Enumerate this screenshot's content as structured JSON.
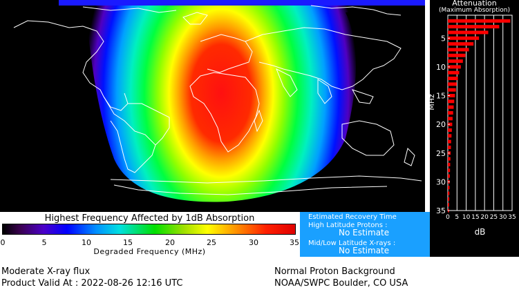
{
  "legend": {
    "title": "Highest Frequency Affected by 1dB Absorption",
    "ticks": [
      "0",
      "5",
      "10",
      "15",
      "20",
      "25",
      "30",
      "35"
    ],
    "xlabel": "Degraded Frequency (MHz)"
  },
  "recovery": {
    "title": "Estimated Recovery Time",
    "high_lat_label": "High Latitude Protons :",
    "high_lat_value": "No Estimate",
    "mid_lat_label": "Mid/Low Latitude X-rays :",
    "mid_lat_value": "No Estimate"
  },
  "attenuation": {
    "title": "Attenuation",
    "subtitle": "(Maximum Absorption)",
    "y_label": "MHz",
    "x_label": "dB",
    "y_ticks": [
      "5",
      "10",
      "15",
      "20",
      "25",
      "30",
      "35"
    ],
    "x_ticks": [
      "0",
      "5",
      "10",
      "15",
      "20",
      "25",
      "30",
      "35"
    ]
  },
  "chart_data": {
    "type": "bar",
    "orientation": "horizontal",
    "title": "Attenuation",
    "subtitle": "(Maximum Absorption)",
    "ylabel": "MHz",
    "xlabel": "dB",
    "xlim": [
      0,
      35
    ],
    "ylim": [
      1,
      35
    ],
    "frequencies": [
      2,
      3,
      4,
      5,
      6,
      7,
      8,
      9,
      10,
      11,
      12,
      13,
      14,
      15,
      16,
      17,
      18,
      19,
      20,
      21,
      22,
      23,
      24,
      25,
      26,
      27,
      28,
      29,
      30,
      31,
      32,
      33,
      34,
      35
    ],
    "values": [
      34,
      28,
      22,
      17,
      14,
      11.5,
      9.6,
      8.2,
      7.1,
      6.2,
      5.5,
      4.9,
      4.4,
      3.9,
      3.5,
      3.2,
      2.9,
      2.6,
      2.4,
      2.2,
      2.0,
      1.8,
      1.7,
      1.55,
      1.42,
      1.3,
      1.2,
      1.1,
      1.02,
      0.94,
      0.87,
      0.8,
      0.74,
      0.68
    ],
    "bar_color": "#ff0000"
  },
  "footer": {
    "flux": "Moderate X-ray flux",
    "proton": "Normal Proton Background",
    "valid": "Product Valid At : 2022-08-26 12:16 UTC",
    "source": "NOAA/SWPC Boulder, CO USA"
  }
}
